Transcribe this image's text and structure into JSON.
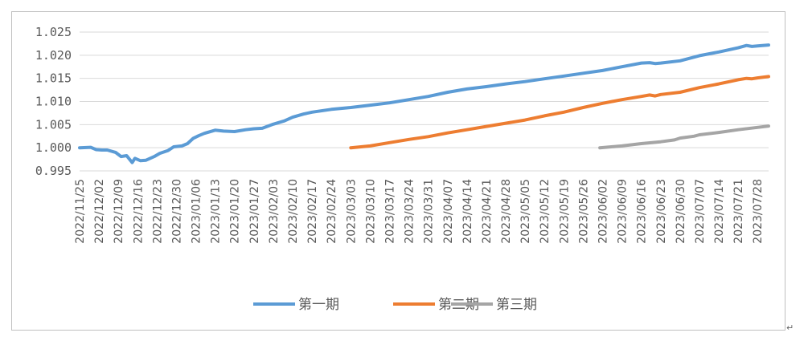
{
  "chart_data": {
    "type": "line",
    "title": "",
    "xlabel": "",
    "ylabel": "",
    "ylim": [
      0.995,
      1.025
    ],
    "y_ticks": [
      "0.995",
      "1.000",
      "1.005",
      "1.010",
      "1.015",
      "1.020",
      "1.025"
    ],
    "x_range": [
      "2022-11-25",
      "2023-08-01"
    ],
    "x_tick_labels": [
      "2022/11/25",
      "2022/12/02",
      "2022/12/09",
      "2022/12/16",
      "2022/12/23",
      "2022/12/30",
      "2023/01/06",
      "2023/01/13",
      "2023/01/20",
      "2023/01/27",
      "2023/02/03",
      "2023/02/10",
      "2023/02/17",
      "2023/02/24",
      "2023/03/03",
      "2023/03/10",
      "2023/03/17",
      "2023/03/24",
      "2023/03/31",
      "2023/04/07",
      "2023/04/14",
      "2023/04/21",
      "2023/04/28",
      "2023/05/05",
      "2023/05/12",
      "2023/05/19",
      "2023/05/26",
      "2023/06/02",
      "2023/06/09",
      "2023/06/16",
      "2023/06/23",
      "2023/06/30",
      "2023/07/07",
      "2023/07/14",
      "2023/07/21",
      "2023/07/28"
    ],
    "grid": "horizontal",
    "legend": "bottom",
    "series": [
      {
        "name": "第一期",
        "color": "#5b9bd5",
        "points": [
          [
            "2022-11-25",
            1.0
          ],
          [
            "2022-11-29",
            1.0001
          ],
          [
            "2022-12-01",
            0.9996
          ],
          [
            "2022-12-03",
            0.9995
          ],
          [
            "2022-12-05",
            0.9995
          ],
          [
            "2022-12-08",
            0.999
          ],
          [
            "2022-12-10",
            0.9981
          ],
          [
            "2022-12-12",
            0.9983
          ],
          [
            "2022-12-14",
            0.9968
          ],
          [
            "2022-12-15",
            0.9977
          ],
          [
            "2022-12-17",
            0.9972
          ],
          [
            "2022-12-19",
            0.9973
          ],
          [
            "2022-12-22",
            0.9981
          ],
          [
            "2022-12-24",
            0.9988
          ],
          [
            "2022-12-27",
            0.9994
          ],
          [
            "2022-12-29",
            1.0002
          ],
          [
            "2023-01-01",
            1.0004
          ],
          [
            "2023-01-03",
            1.0009
          ],
          [
            "2023-01-05",
            1.002
          ],
          [
            "2023-01-07",
            1.0026
          ],
          [
            "2023-01-09",
            1.0031
          ],
          [
            "2023-01-13",
            1.0038
          ],
          [
            "2023-01-16",
            1.0036
          ],
          [
            "2023-01-20",
            1.0035
          ],
          [
            "2023-01-24",
            1.0039
          ],
          [
            "2023-01-27",
            1.0041
          ],
          [
            "2023-01-30",
            1.0042
          ],
          [
            "2023-02-03",
            1.0051
          ],
          [
            "2023-02-07",
            1.0058
          ],
          [
            "2023-02-10",
            1.0066
          ],
          [
            "2023-02-14",
            1.0073
          ],
          [
            "2023-02-17",
            1.0077
          ],
          [
            "2023-02-24",
            1.0083
          ],
          [
            "2023-03-03",
            1.0087
          ],
          [
            "2023-03-10",
            1.0092
          ],
          [
            "2023-03-17",
            1.0097
          ],
          [
            "2023-03-24",
            1.0104
          ],
          [
            "2023-03-31",
            1.0111
          ],
          [
            "2023-04-07",
            1.012
          ],
          [
            "2023-04-14",
            1.0127
          ],
          [
            "2023-04-21",
            1.0132
          ],
          [
            "2023-04-28",
            1.0138
          ],
          [
            "2023-05-05",
            1.0143
          ],
          [
            "2023-05-12",
            1.0149
          ],
          [
            "2023-05-19",
            1.0155
          ],
          [
            "2023-05-26",
            1.0161
          ],
          [
            "2023-06-02",
            1.0167
          ],
          [
            "2023-06-09",
            1.0175
          ],
          [
            "2023-06-16",
            1.0183
          ],
          [
            "2023-06-19",
            1.0184
          ],
          [
            "2023-06-21",
            1.0182
          ],
          [
            "2023-06-23",
            1.0183
          ],
          [
            "2023-06-30",
            1.0188
          ],
          [
            "2023-07-07",
            1.0199
          ],
          [
            "2023-07-14",
            1.0207
          ],
          [
            "2023-07-21",
            1.0216
          ],
          [
            "2023-07-24",
            1.0221
          ],
          [
            "2023-07-26",
            1.0219
          ],
          [
            "2023-07-28",
            1.022
          ],
          [
            "2023-08-01",
            1.0222
          ]
        ]
      },
      {
        "name": "第二期",
        "color": "#ed7d31",
        "points": [
          [
            "2023-03-03",
            1.0
          ],
          [
            "2023-03-10",
            1.0004
          ],
          [
            "2023-03-17",
            1.0011
          ],
          [
            "2023-03-24",
            1.0018
          ],
          [
            "2023-03-31",
            1.0024
          ],
          [
            "2023-04-07",
            1.0032
          ],
          [
            "2023-04-14",
            1.0039
          ],
          [
            "2023-04-21",
            1.0046
          ],
          [
            "2023-04-28",
            1.0053
          ],
          [
            "2023-05-05",
            1.006
          ],
          [
            "2023-05-12",
            1.0069
          ],
          [
            "2023-05-19",
            1.0077
          ],
          [
            "2023-05-26",
            1.0087
          ],
          [
            "2023-06-02",
            1.0096
          ],
          [
            "2023-06-09",
            1.0104
          ],
          [
            "2023-06-16",
            1.0111
          ],
          [
            "2023-06-19",
            1.0114
          ],
          [
            "2023-06-21",
            1.0112
          ],
          [
            "2023-06-23",
            1.0115
          ],
          [
            "2023-06-30",
            1.012
          ],
          [
            "2023-07-07",
            1.013
          ],
          [
            "2023-07-14",
            1.0138
          ],
          [
            "2023-07-21",
            1.0147
          ],
          [
            "2023-07-24",
            1.015
          ],
          [
            "2023-07-26",
            1.0149
          ],
          [
            "2023-07-28",
            1.0151
          ],
          [
            "2023-08-01",
            1.0154
          ]
        ]
      },
      {
        "name": "第三期",
        "color": "#a5a5a5",
        "points": [
          [
            "2023-06-01",
            1.0
          ],
          [
            "2023-06-09",
            1.0004
          ],
          [
            "2023-06-16",
            1.0009
          ],
          [
            "2023-06-23",
            1.0013
          ],
          [
            "2023-06-28",
            1.0017
          ],
          [
            "2023-06-30",
            1.0021
          ],
          [
            "2023-07-05",
            1.0025
          ],
          [
            "2023-07-07",
            1.0028
          ],
          [
            "2023-07-14",
            1.0033
          ],
          [
            "2023-07-21",
            1.0039
          ],
          [
            "2023-07-28",
            1.0044
          ],
          [
            "2023-08-01",
            1.0047
          ]
        ]
      }
    ]
  }
}
